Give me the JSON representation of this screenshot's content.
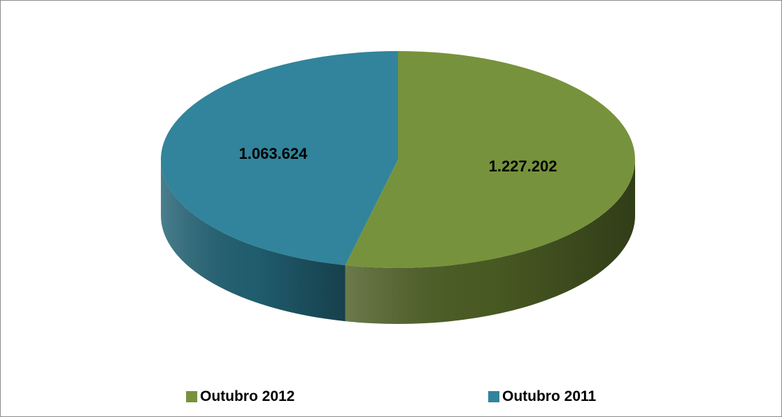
{
  "chart_data": {
    "type": "pie",
    "title": "",
    "style": "3d",
    "legend_position": "bottom",
    "categories": [
      "Outubro 2012",
      "Outubro 2011"
    ],
    "values": [
      1227202,
      1063624
    ],
    "value_labels": [
      "1.227.202",
      "1.063.624"
    ],
    "colors": [
      "#77923c",
      "#31849b"
    ],
    "side_colors": [
      "#4c5e24",
      "#226274"
    ]
  }
}
